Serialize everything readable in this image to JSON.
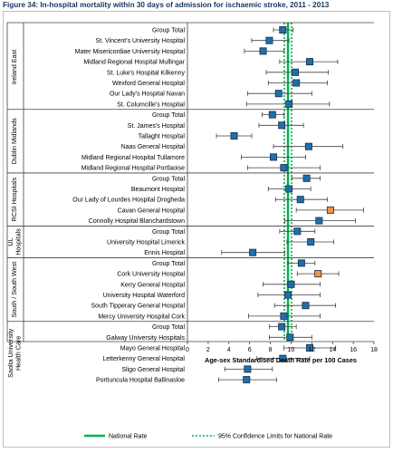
{
  "title": "Figure 34: In-hospital mortality within 30 days of admission for ischaemic stroke, 2011 - 2013",
  "chart_data": {
    "type": "forest",
    "xlabel": "Age-sex Standardised Death Rate per 100 Cases",
    "xlim": [
      0,
      18
    ],
    "xticks": [
      0,
      2,
      4,
      6,
      8,
      10,
      12,
      14,
      16,
      18
    ],
    "national_rate": 9.7,
    "ci_limits": [
      9.35,
      10.05
    ],
    "legend": {
      "national": "National Rate",
      "ci": "95% Confidence Limits for National Rate"
    },
    "colors": {
      "normal": "#1f6fa8",
      "outlier": "#f0923e",
      "national": "#00b050",
      "marker_edge": "#1a2f4a",
      "whisker": "#404040"
    },
    "groups": [
      {
        "name": "Ireland East",
        "label_lines": [
          "Ireland East"
        ],
        "rows": [
          {
            "label": "Group Total",
            "value": 9.2,
            "low": 8.3,
            "high": 10.2
          },
          {
            "label": "St. Vincent's University Hospital",
            "value": 7.9,
            "low": 6.2,
            "high": 9.8
          },
          {
            "label": "Mater Misericordiae University Hospital",
            "value": 7.3,
            "low": 5.5,
            "high": 9.3
          },
          {
            "label": "Midland Regional Hospital Mullingar",
            "value": 11.8,
            "low": 8.9,
            "high": 14.5
          },
          {
            "label": "St. Luke's Hospital Kilkenny",
            "value": 10.4,
            "low": 7.6,
            "high": 13.6
          },
          {
            "label": "Wexford General Hospital",
            "value": 10.5,
            "low": 7.8,
            "high": 13.5
          },
          {
            "label": "Our Lady's Hospital Navan",
            "value": 8.8,
            "low": 5.8,
            "high": 12.0
          },
          {
            "label": "St. Columcille's Hospital",
            "value": 9.8,
            "low": 5.7,
            "high": 13.7
          }
        ]
      },
      {
        "name": "Dublin Midlands",
        "label_lines": [
          "Dublin Midlands"
        ],
        "rows": [
          {
            "label": "Group Total",
            "value": 8.2,
            "low": 7.2,
            "high": 9.3
          },
          {
            "label": "St. James's Hospital",
            "value": 9.1,
            "low": 6.9,
            "high": 11.2
          },
          {
            "label": "Tallaght Hospital",
            "value": 4.5,
            "low": 2.8,
            "high": 6.2
          },
          {
            "label": "Naas General Hospital",
            "value": 11.7,
            "low": 8.3,
            "high": 15.0
          },
          {
            "label": "Midland Regional Hospital Tullamore",
            "value": 8.3,
            "low": 5.2,
            "high": 11.4
          },
          {
            "label": "Midland Regional Hospital Portlaoise",
            "value": 9.3,
            "low": 5.8,
            "high": 12.8
          }
        ]
      },
      {
        "name": "RCSI Hospitals",
        "label_lines": [
          "RCSI Hospitals"
        ],
        "rows": [
          {
            "label": "Group Total",
            "value": 11.5,
            "low": 10.1,
            "high": 12.8
          },
          {
            "label": "Beaumont Hospital",
            "value": 9.8,
            "low": 7.8,
            "high": 11.9
          },
          {
            "label": "Our Lady of Lourdes Hospital Drogheda",
            "value": 10.9,
            "low": 8.5,
            "high": 13.5
          },
          {
            "label": "Cavan General Hospital",
            "value": 13.8,
            "low": 10.5,
            "high": 17.0,
            "outlier": true
          },
          {
            "label": "Connolly Hospital Blanchardstown",
            "value": 12.7,
            "low": 9.4,
            "high": 16.2
          }
        ]
      },
      {
        "name": "UL Hospitals",
        "label_lines": [
          "UL",
          "Hospitals"
        ],
        "rows": [
          {
            "label": "Group Total",
            "value": 10.6,
            "low": 8.9,
            "high": 12.3
          },
          {
            "label": "University Hospital Limerick",
            "value": 11.9,
            "low": 9.6,
            "high": 14.1
          },
          {
            "label": "Ennis Hospital",
            "value": 6.3,
            "low": 3.3,
            "high": 9.4
          }
        ]
      },
      {
        "name": "South / South West",
        "label_lines": [
          "South / South West"
        ],
        "rows": [
          {
            "label": "Group Total",
            "value": 11.0,
            "low": 9.7,
            "high": 12.3
          },
          {
            "label": "Cork University Hospital",
            "value": 12.6,
            "low": 10.6,
            "high": 14.6,
            "outlier": true
          },
          {
            "label": "Kerry General Hospital",
            "value": 10.0,
            "low": 7.3,
            "high": 12.8
          },
          {
            "label": "University Hospital Waterford",
            "value": 9.7,
            "low": 6.8,
            "high": 12.8
          },
          {
            "label": "South Tipperary General Hospital",
            "value": 11.4,
            "low": 8.4,
            "high": 14.3
          },
          {
            "label": "Mercy University Hospital Cork",
            "value": 9.3,
            "low": 5.9,
            "high": 12.8
          }
        ]
      },
      {
        "name": "Saolta University Health Care",
        "label_lines": [
          "Saolta University",
          "Health Care"
        ],
        "rows": [
          {
            "label": "Group Total",
            "value": 9.1,
            "low": 7.9,
            "high": 10.5
          },
          {
            "label": "Galway University Hospitals",
            "value": 9.9,
            "low": 7.9,
            "high": 12.0
          },
          {
            "label": "Mayo General Hospital",
            "value": 11.8,
            "low": 9.3,
            "high": 14.3
          },
          {
            "label": "Letterkenny General Hospital",
            "value": 9.2,
            "low": 6.7,
            "high": 11.8
          },
          {
            "label": "Sligo General Hospital",
            "value": 5.8,
            "low": 3.6,
            "high": 8.2
          },
          {
            "label": "Portiuncula Hospital Ballinasloe",
            "value": 5.7,
            "low": 3.0,
            "high": 8.6
          }
        ]
      }
    ]
  }
}
